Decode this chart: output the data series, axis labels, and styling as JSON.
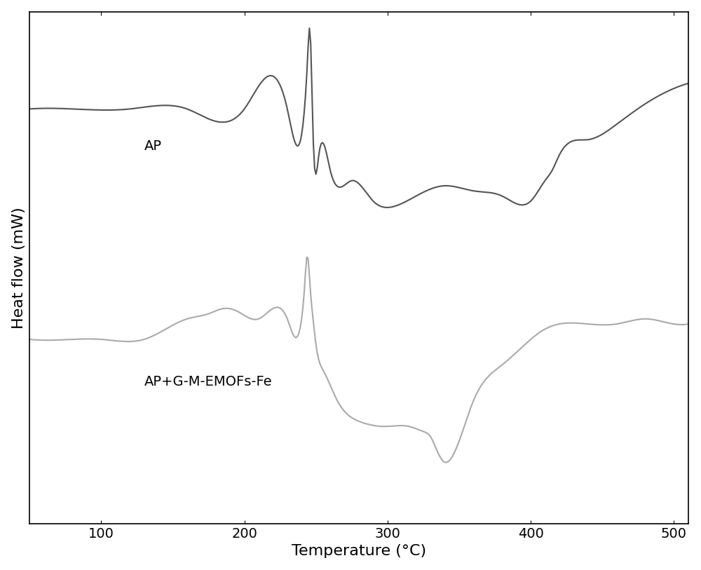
{
  "xlabel": "Temperature (°C)",
  "ylabel": "Heat flow (mW)",
  "xlim": [
    50,
    510
  ],
  "ylim": [
    -1.0,
    1.0
  ],
  "xticks": [
    100,
    200,
    300,
    400,
    500
  ],
  "background_color": "#ffffff",
  "label_ap": "AP",
  "label_ap2": "AP+G-M-EMOFs-Fe",
  "color_ap": "#555555",
  "color_ap2": "#aaaaaa",
  "linewidth": 1.5,
  "xlabel_fontsize": 16,
  "ylabel_fontsize": 16,
  "tick_fontsize": 14,
  "ap_x": [
    50,
    80,
    120,
    160,
    200,
    230,
    242,
    244,
    246,
    248,
    252,
    260,
    275,
    290,
    305,
    320,
    340,
    360,
    380,
    400,
    410,
    415,
    420,
    440,
    460,
    480,
    500,
    510
  ],
  "ap_y": [
    0.62,
    0.62,
    0.62,
    0.62,
    0.62,
    0.62,
    0.62,
    0.8,
    0.92,
    0.52,
    0.44,
    0.38,
    0.34,
    0.26,
    0.24,
    0.28,
    0.32,
    0.3,
    0.28,
    0.26,
    0.34,
    0.38,
    0.44,
    0.5,
    0.56,
    0.64,
    0.7,
    0.72
  ],
  "ap2_x": [
    50,
    80,
    100,
    130,
    160,
    175,
    185,
    195,
    210,
    230,
    240,
    242,
    244,
    246,
    248,
    250,
    255,
    265,
    280,
    300,
    315,
    325,
    330,
    335,
    340,
    345,
    360,
    380,
    400,
    410,
    420,
    440,
    460,
    480,
    500,
    510
  ],
  "ap2_y": [
    -0.28,
    -0.28,
    -0.28,
    -0.28,
    -0.2,
    -0.18,
    -0.16,
    -0.17,
    -0.2,
    -0.2,
    -0.2,
    -0.08,
    0.05,
    -0.08,
    -0.2,
    -0.3,
    -0.4,
    -0.52,
    -0.6,
    -0.62,
    -0.62,
    -0.64,
    -0.66,
    -0.72,
    -0.76,
    -0.74,
    -0.52,
    -0.38,
    -0.28,
    -0.24,
    -0.22,
    -0.22,
    -0.22,
    -0.2,
    -0.22,
    -0.22
  ]
}
